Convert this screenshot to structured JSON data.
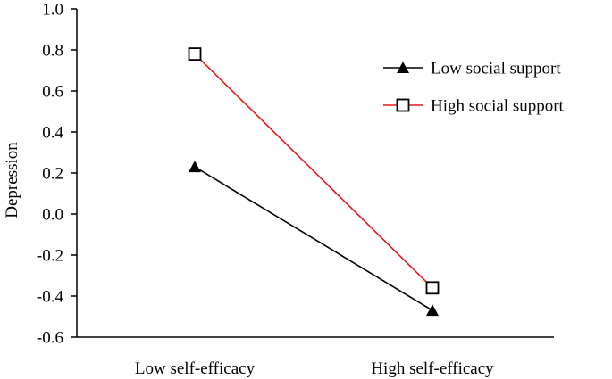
{
  "chart_data": {
    "type": "line",
    "title": "",
    "xlabel": "",
    "ylabel": "Depression",
    "ylim": [
      -0.6,
      1.0
    ],
    "yticks": [
      1.0,
      0.8,
      0.6,
      0.4,
      0.2,
      0.0,
      -0.2,
      -0.4,
      -0.6
    ],
    "ytick_labels": [
      "1.0",
      "0.8",
      "0.6",
      "0.4",
      "0.2",
      "0.0",
      "-0.2",
      "-0.4",
      "-0.6"
    ],
    "categories": [
      "Low self-efficacy",
      "High self-efficacy"
    ],
    "grid": false,
    "legend_position": "top-right",
    "series": [
      {
        "name": "Low social support",
        "values": [
          0.23,
          -0.47
        ],
        "marker": "filled-triangle",
        "color": "#000000"
      },
      {
        "name": "High social support",
        "values": [
          0.78,
          -0.36
        ],
        "marker": "open-square",
        "color": "#e8171b"
      }
    ]
  }
}
